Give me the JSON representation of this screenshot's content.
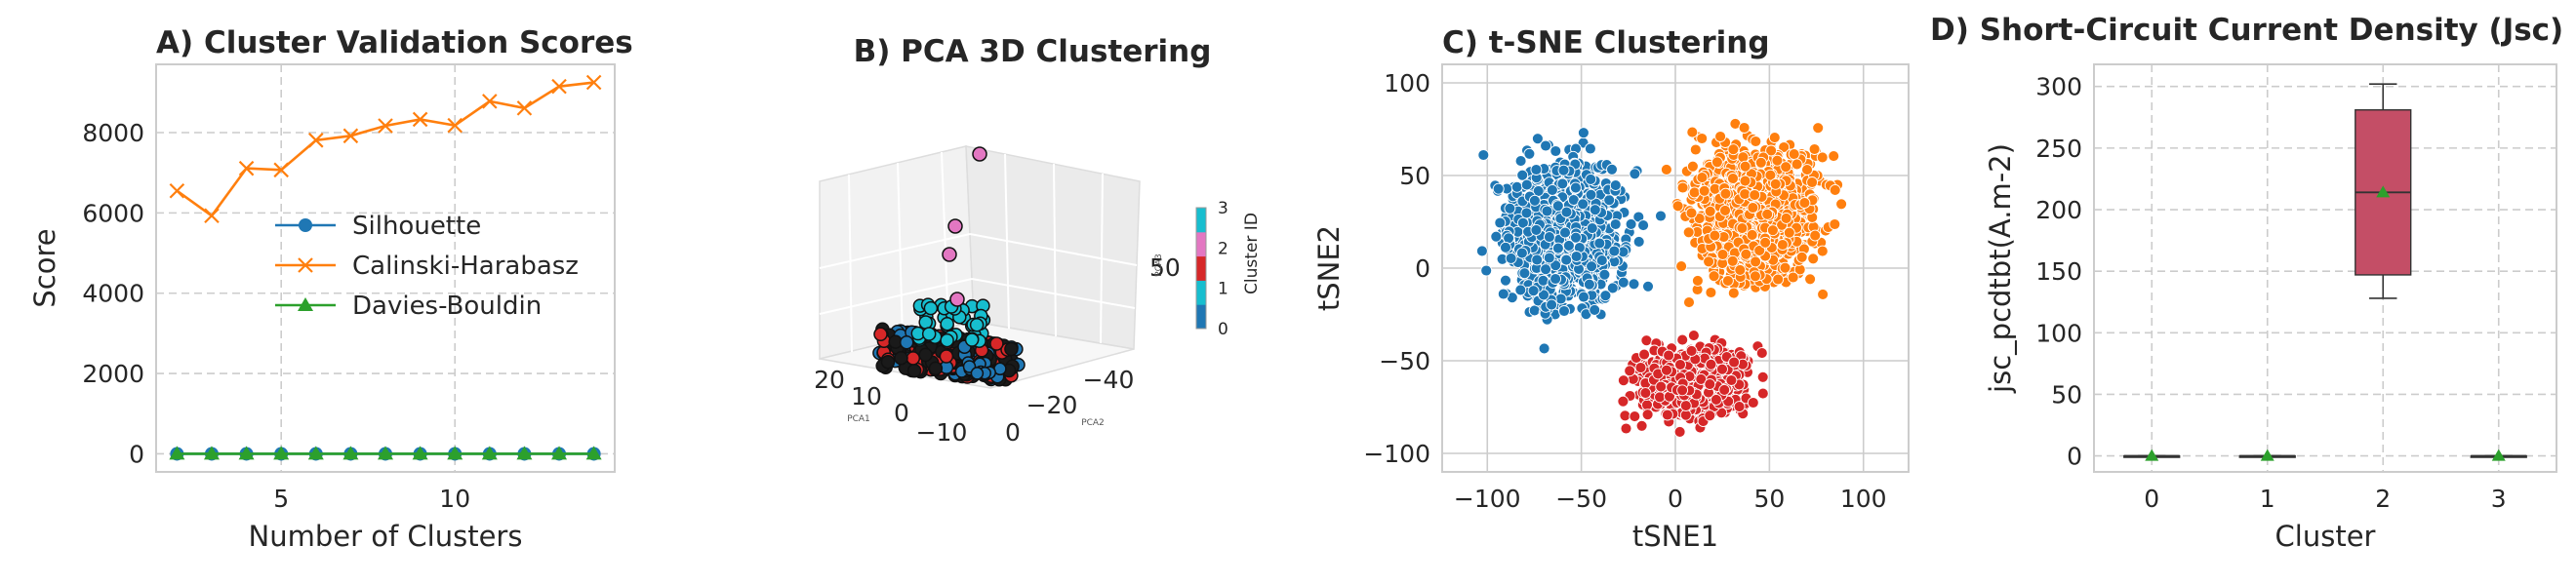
{
  "chart_data": [
    {
      "type": "line",
      "panel": "A",
      "title": "A) Cluster Validation Scores",
      "xlabel": "Number of Clusters",
      "ylabel": "Score",
      "xlim": [
        1.4,
        14.6
      ],
      "ylim": [
        -450,
        9700
      ],
      "xticks": [
        5,
        10
      ],
      "yticks": [
        0,
        2000,
        4000,
        6000,
        8000
      ],
      "grid": true,
      "legend_position": "center",
      "x": [
        2,
        3,
        4,
        5,
        6,
        7,
        8,
        9,
        10,
        11,
        12,
        13,
        14
      ],
      "series": [
        {
          "name": "Silhouette",
          "color": "#1f77b4",
          "marker": "circle",
          "values": [
            0.35,
            0.38,
            0.36,
            0.33,
            0.31,
            0.3,
            0.29,
            0.28,
            0.27,
            0.27,
            0.26,
            0.26,
            0.25
          ]
        },
        {
          "name": "Calinski-Harabasz",
          "color": "#ff7f0e",
          "marker": "x",
          "values": [
            6550,
            5930,
            7110,
            7070,
            7810,
            7920,
            8170,
            8330,
            8180,
            8780,
            8610,
            9150,
            9250
          ]
        },
        {
          "name": "Davies-Bouldin",
          "color": "#2ca02c",
          "marker": "triangle",
          "values": [
            1.0,
            1.1,
            1.0,
            1.1,
            1.1,
            1.1,
            1.1,
            1.1,
            1.1,
            1.1,
            1.1,
            1.1,
            1.1
          ]
        }
      ]
    },
    {
      "type": "scatter",
      "panel": "B",
      "title": "B) PCA 3D Clustering",
      "xlabel": "PCA1",
      "ylabel": "PCA2",
      "zlabel": "PCA3",
      "xticks": [
        20,
        10,
        0,
        -10
      ],
      "yticks": [
        -40,
        -20,
        0
      ],
      "zticks": [
        50
      ],
      "colorbar_label": "Cluster ID",
      "colorbar_ticks": [
        0,
        1,
        2,
        3
      ],
      "cluster_colors": [
        "#1f77b4",
        "#d62728",
        "#e377c2",
        "#17becf"
      ]
    },
    {
      "type": "scatter",
      "panel": "C",
      "title": "C) t-SNE Clustering",
      "xlabel": "tSNE1",
      "ylabel": "tSNE2",
      "xlim": [
        -124,
        124
      ],
      "ylim": [
        -110,
        110
      ],
      "xticks": [
        -100,
        -50,
        0,
        50,
        100
      ],
      "yticks": [
        -100,
        -50,
        0,
        50,
        100
      ],
      "grid": true,
      "clusters": [
        {
          "id": 0,
          "color": "#1f77b4",
          "center": [
            -58,
            18
          ],
          "spread": [
            28,
            36
          ],
          "count": 900
        },
        {
          "id": 1,
          "color": "#ff7f0e",
          "center": [
            42,
            30
          ],
          "spread": [
            30,
            32
          ],
          "count": 1000
        },
        {
          "id": 2,
          "color": "#d62728",
          "center": [
            8,
            -62
          ],
          "spread": [
            26,
            17
          ],
          "count": 650
        }
      ]
    },
    {
      "type": "box",
      "panel": "D",
      "title": "D) Short-Circuit Current Density (Jsc)",
      "xlabel": "Cluster",
      "ylabel": "jsc_pcdtbt(A.m-2)",
      "categories": [
        "0",
        "1",
        "2",
        "3"
      ],
      "ylim": [
        -13,
        318
      ],
      "yticks": [
        0,
        50,
        100,
        150,
        200,
        250,
        300
      ],
      "grid": true,
      "boxes": [
        {
          "min": 0,
          "q1": 0,
          "median": 0,
          "q3": 0,
          "max": 0,
          "mean": 0
        },
        {
          "min": 0,
          "q1": 0,
          "median": 0,
          "q3": 0,
          "max": 0,
          "mean": 0
        },
        {
          "min": 128,
          "q1": 147,
          "median": 214,
          "q3": 281,
          "max": 302,
          "mean": 214,
          "color": "#c44e66"
        },
        {
          "min": 0,
          "q1": 0,
          "median": 0,
          "q3": 0,
          "max": 0,
          "mean": 0
        }
      ],
      "mean_marker_color": "#2ca02c"
    }
  ]
}
